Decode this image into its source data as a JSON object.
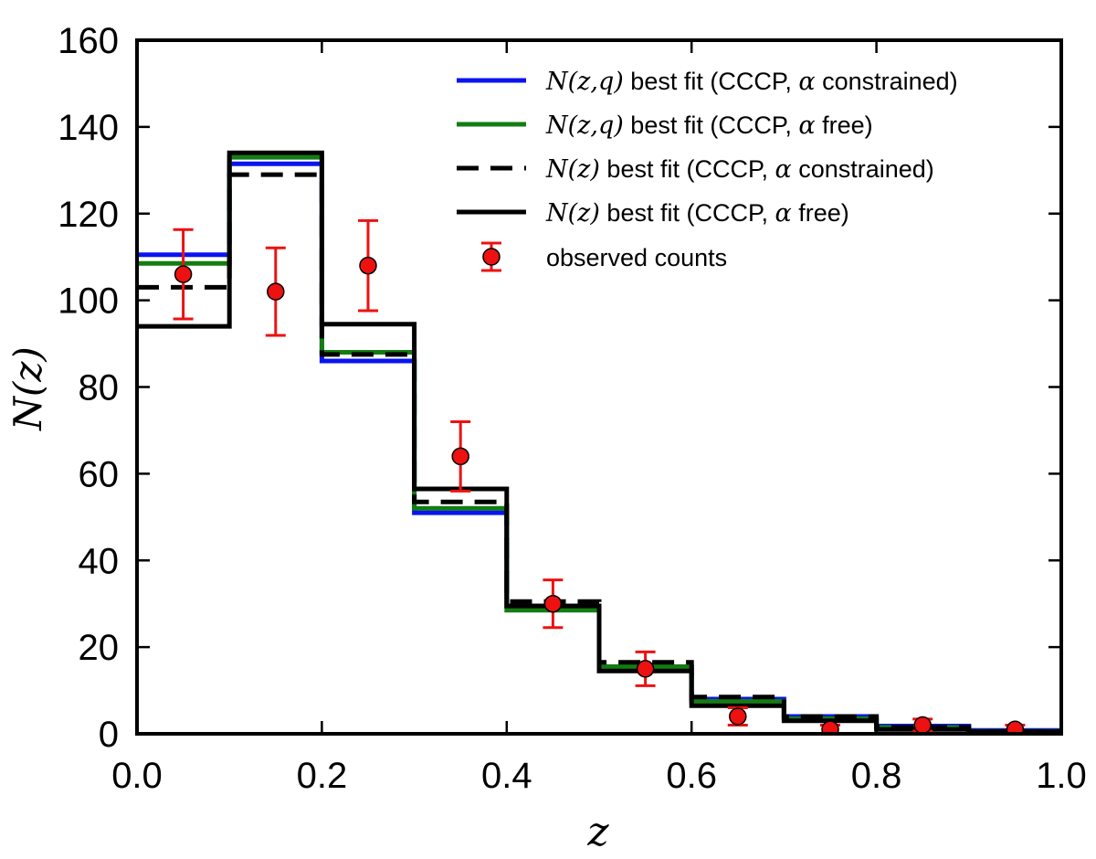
{
  "chart_data": {
    "type": "line",
    "subtype": "step-histogram-with-errorbars",
    "xlabel": "z",
    "ylabel": "N(z)",
    "xlim": [
      0.0,
      1.0
    ],
    "ylim": [
      0,
      160
    ],
    "x_ticks": [
      0.0,
      0.2,
      0.4,
      0.6,
      0.8,
      1.0
    ],
    "x_tick_labels": [
      "0.0",
      "0.2",
      "0.4",
      "0.6",
      "0.8",
      "1.0"
    ],
    "y_ticks": [
      0,
      20,
      40,
      60,
      80,
      100,
      120,
      140,
      160
    ],
    "y_tick_labels": [
      "0",
      "20",
      "40",
      "60",
      "80",
      "100",
      "120",
      "140",
      "160"
    ],
    "grid": false,
    "legend_position": "top-right",
    "bin_edges": [
      0.0,
      0.1,
      0.2,
      0.3,
      0.4,
      0.5,
      0.6,
      0.7,
      0.8,
      0.9,
      1.0
    ],
    "series": [
      {
        "name": "blue",
        "legend_math": "N(z,q)",
        "legend_text": " best fit (CCCP, ",
        "legend_alpha": "α",
        "legend_tail": " constrained)",
        "color": "#0a14f0",
        "style": "solid",
        "values": [
          110.5,
          131.5,
          86.0,
          51.0,
          29.5,
          15.5,
          8.0,
          4.0,
          1.8,
          0.8
        ]
      },
      {
        "name": "green",
        "legend_math": "N(z,q)",
        "legend_text": " best fit (CCCP, ",
        "legend_alpha": "α",
        "legend_tail": " free)",
        "color": "#137c13",
        "style": "solid",
        "values": [
          108.5,
          133.0,
          88.0,
          52.0,
          28.5,
          15.5,
          7.5,
          3.5,
          1.5,
          0.6
        ]
      },
      {
        "name": "black-dashed",
        "legend_math": "N(z)",
        "legend_text": " best fit (CCCP, ",
        "legend_alpha": "α",
        "legend_tail": " constrained)",
        "color": "#000000",
        "style": "dashed",
        "values": [
          103.0,
          129.0,
          87.5,
          53.5,
          30.5,
          16.5,
          8.5,
          4.0,
          1.5,
          0.5
        ]
      },
      {
        "name": "black-solid",
        "legend_math": "N(z)",
        "legend_text": " best fit (CCCP, ",
        "legend_alpha": "α",
        "legend_tail": " free)",
        "color": "#000000",
        "style": "solid",
        "values": [
          94.0,
          134.0,
          94.5,
          56.5,
          29.5,
          14.5,
          6.5,
          3.0,
          1.0,
          0.5
        ]
      }
    ],
    "observed": {
      "name": "observed counts",
      "color": "#ee1111",
      "x": [
        0.05,
        0.15,
        0.25,
        0.35,
        0.45,
        0.55,
        0.65,
        0.75,
        0.85,
        0.95
      ],
      "y": [
        106,
        102,
        108,
        64,
        30,
        15,
        4,
        1,
        2,
        1
      ],
      "err": [
        10.3,
        10.1,
        10.4,
        8.0,
        5.5,
        3.9,
        2.0,
        1.0,
        1.4,
        1.0
      ]
    }
  }
}
